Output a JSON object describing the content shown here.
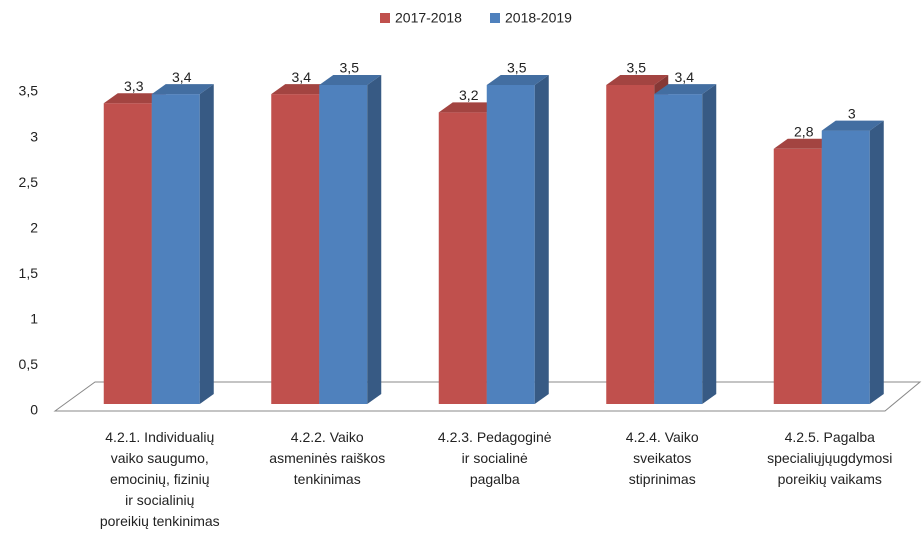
{
  "chart_data": {
    "type": "bar3d",
    "categories": [
      "4.2.1. Individualių vaiko saugumo, emocinių, fizinių ir socialinių poreikių tenkinimas",
      "4.2.2. Vaiko asmeninės raiškos tenkinimas",
      "4.2.3. Pedagoginė ir socialinė pagalba",
      "4.2.4. Vaiko sveikatos stiprinimas",
      "4.2.5. Pagalba specialiųjųugdymosi poreikių vaikams"
    ],
    "series": [
      {
        "name": "2017-2018",
        "color": "#c0504d",
        "values": [
          3.3,
          3.4,
          3.2,
          3.5,
          2.8
        ],
        "value_labels": [
          "3,3",
          "3,4",
          "3,2",
          "3,5",
          "2,8"
        ]
      },
      {
        "name": "2018-2019",
        "color": "#4f81bd",
        "values": [
          3.4,
          3.5,
          3.5,
          3.4,
          3
        ],
        "value_labels": [
          "3,4",
          "3,5",
          "3,5",
          "3,4",
          "3"
        ]
      }
    ],
    "ylim": [
      0,
      3.5
    ],
    "yticks": [
      0,
      {
        "value": 0.5,
        "label": "0,5"
      },
      1,
      {
        "value": 1.5,
        "label": "1,5"
      },
      2,
      {
        "value": 2.5,
        "label": "2,5"
      },
      3,
      {
        "value": 3.5,
        "label": "3,5"
      }
    ],
    "legend": "top"
  }
}
